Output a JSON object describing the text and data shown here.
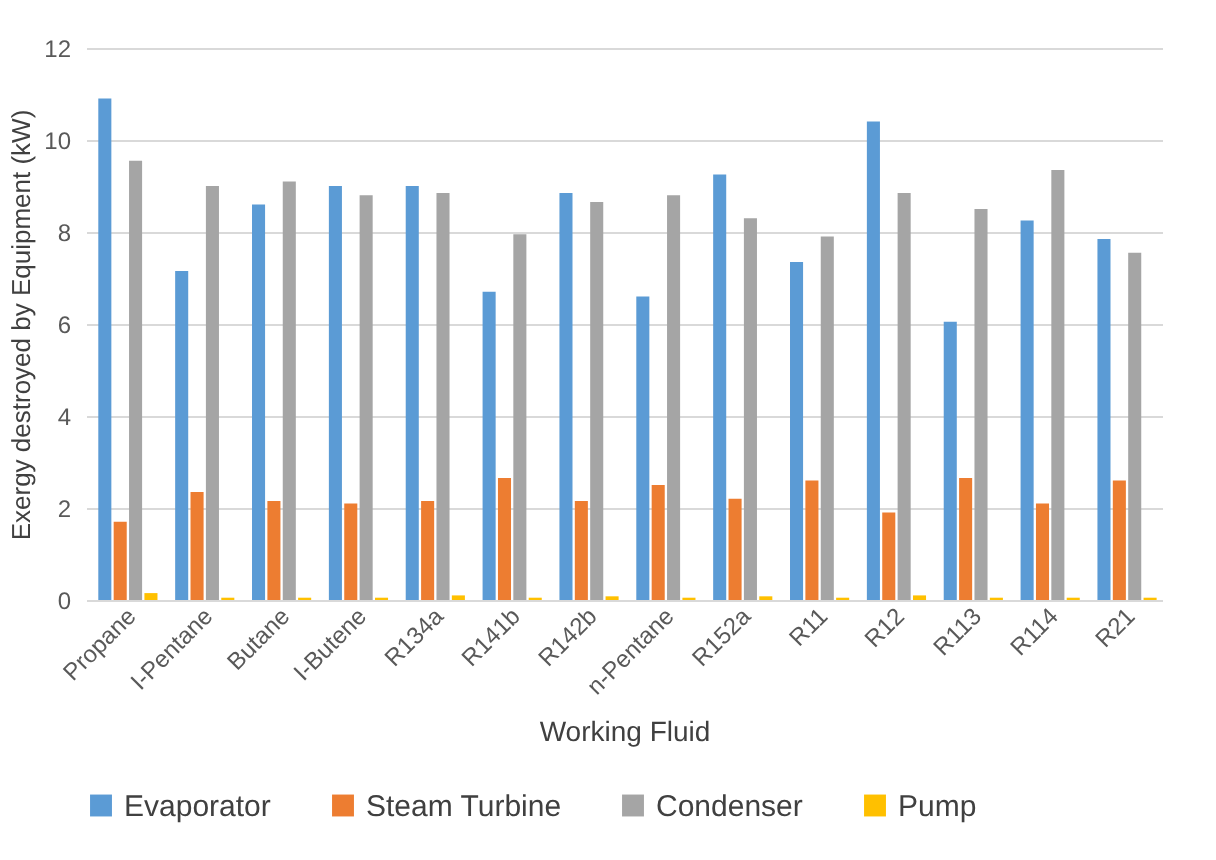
{
  "chart_data": {
    "type": "bar",
    "xlabel": "Working Fluid",
    "ylabel": "Exergy destroyed by Equipment (kW)",
    "categories": [
      "Propane",
      "I-Pentane",
      "Butane",
      "I-Butene",
      "R134a",
      "R141b",
      "R142b",
      "n-Pentane",
      "R152a",
      "R11",
      "R12",
      "R113",
      "R114",
      "R21"
    ],
    "series": [
      {
        "name": "Evaporator",
        "color": "#5b9bd5",
        "values": [
          10.9,
          7.15,
          8.6,
          9.0,
          9.0,
          6.7,
          8.85,
          6.6,
          9.25,
          7.35,
          10.4,
          6.05,
          8.25,
          7.85
        ]
      },
      {
        "name": "Steam Turbine",
        "color": "#ed7d31",
        "values": [
          1.7,
          2.35,
          2.15,
          2.1,
          2.15,
          2.65,
          2.15,
          2.5,
          2.2,
          2.6,
          1.9,
          2.65,
          2.1,
          2.6
        ]
      },
      {
        "name": "Condenser",
        "color": "#a5a5a5",
        "values": [
          9.55,
          9.0,
          9.1,
          8.8,
          8.85,
          7.95,
          8.65,
          8.8,
          8.3,
          7.9,
          8.85,
          8.5,
          9.35,
          7.55
        ]
      },
      {
        "name": "Pump",
        "color": "#ffc000",
        "values": [
          0.15,
          0.05,
          0.05,
          0.05,
          0.1,
          0.05,
          0.08,
          0.05,
          0.08,
          0.05,
          0.1,
          0.05,
          0.05,
          0.05
        ]
      }
    ],
    "ylim": [
      0,
      12
    ],
    "yticks": [
      0,
      2,
      4,
      6,
      8,
      10,
      12
    ],
    "grid": "y",
    "legend": "bottom"
  }
}
